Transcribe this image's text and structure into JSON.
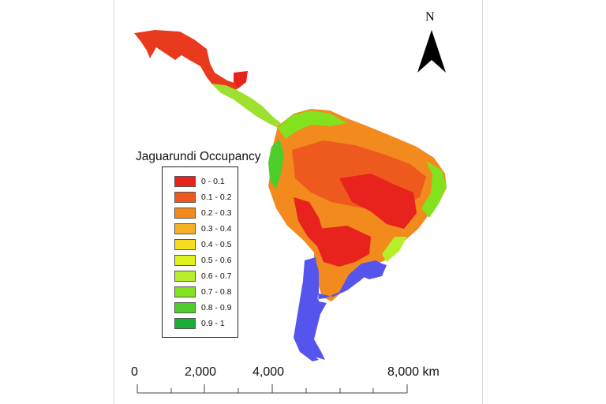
{
  "map": {
    "legend_title": "Jaguarundi Occupancy",
    "legend": [
      {
        "label": "0 - 0.1",
        "color": "#e8221c"
      },
      {
        "label": "0.1 - 0.2",
        "color": "#ee5a1e"
      },
      {
        "label": "0.2 - 0.3",
        "color": "#f28a1e"
      },
      {
        "label": "0.3 - 0.4",
        "color": "#f6ae22"
      },
      {
        "label": "0.4 - 0.5",
        "color": "#f6de1e"
      },
      {
        "label": "0.5 - 0.6",
        "color": "#def21e"
      },
      {
        "label": "0.6 - 0.7",
        "color": "#b6ee2a"
      },
      {
        "label": "0.7 - 0.8",
        "color": "#82e21e"
      },
      {
        "label": "0.8 - 0.9",
        "color": "#4ecc2a"
      },
      {
        "label": "0.9 - 1",
        "color": "#1aae36"
      }
    ],
    "no_data_color": "#5555ee",
    "north_label": "N",
    "scale": {
      "labels": [
        "0",
        "2,000",
        "4,000",
        "8,000 km"
      ]
    }
  }
}
